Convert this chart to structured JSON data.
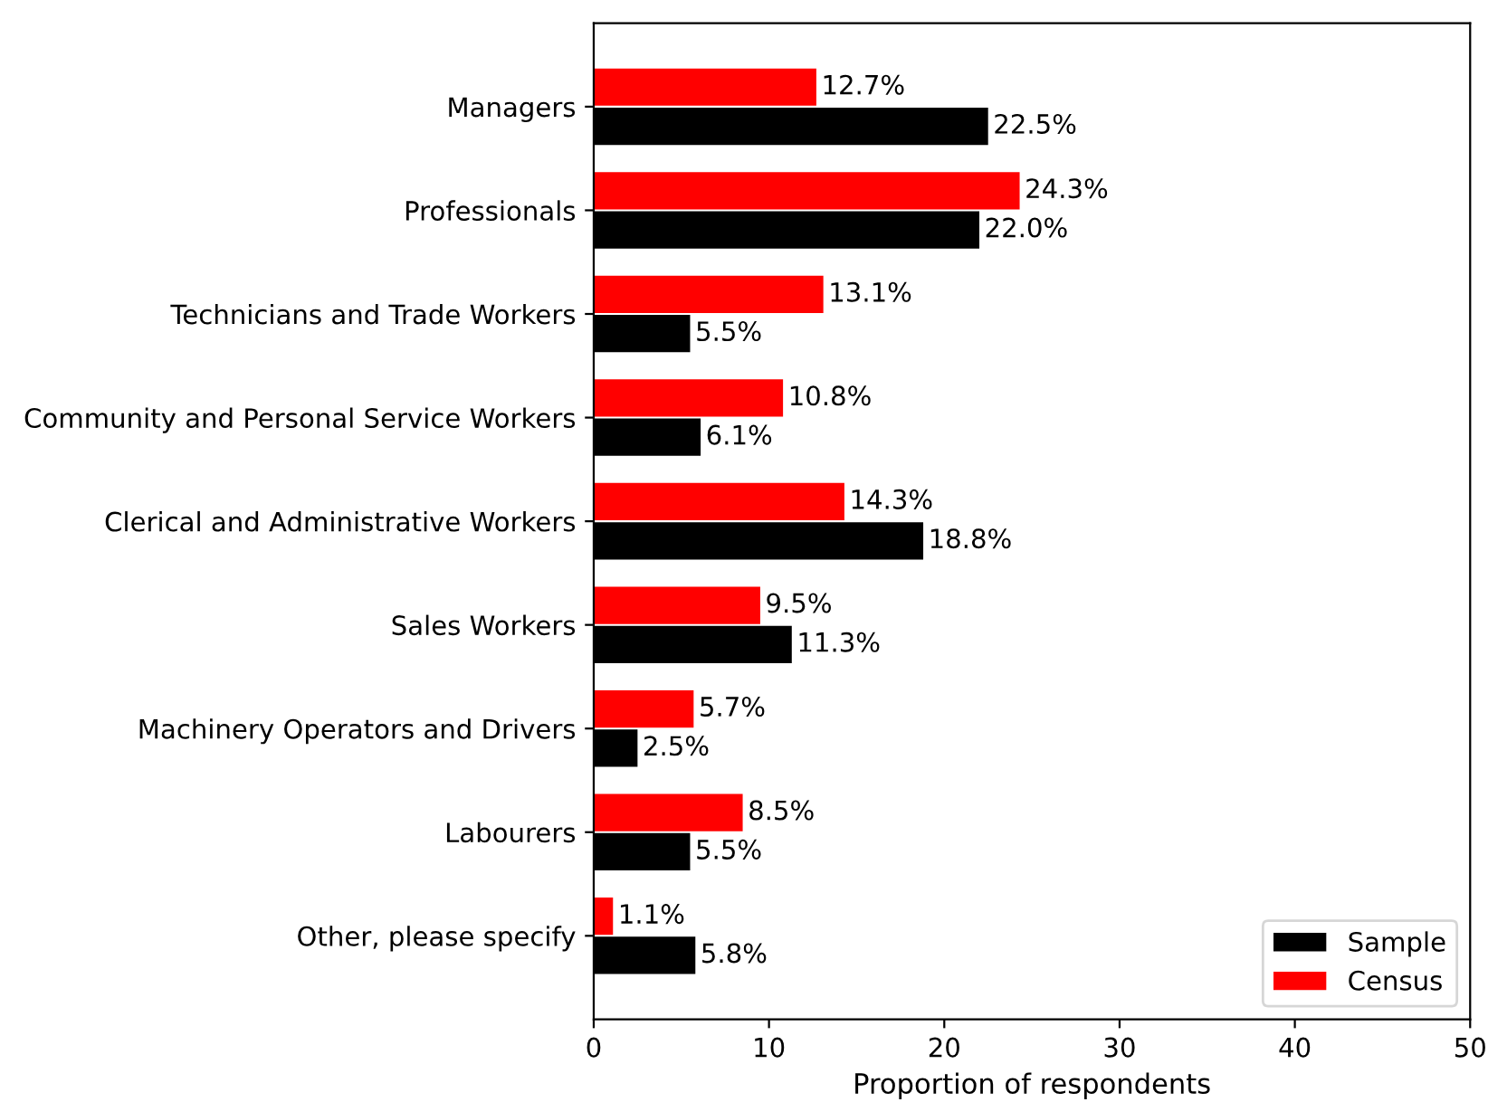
{
  "chart_data": {
    "type": "bar",
    "orientation": "horizontal",
    "xlabel": "Proportion of respondents",
    "categories": [
      "Managers",
      "Professionals",
      "Technicians and Trade Workers",
      "Community and Personal Service Workers",
      "Clerical and Administrative Workers",
      "Sales Workers",
      "Machinery Operators and Drivers",
      "Labourers",
      "Other, please specify"
    ],
    "series": [
      {
        "name": "Sample",
        "color": "#000000",
        "values": [
          22.5,
          22.0,
          5.5,
          6.1,
          18.8,
          11.3,
          2.5,
          5.5,
          5.8
        ],
        "value_labels": [
          "22.5%",
          "22.0%",
          "5.5%",
          "6.1%",
          "18.8%",
          "11.3%",
          "2.5%",
          "5.5%",
          "5.8%"
        ]
      },
      {
        "name": "Census",
        "color": "#ff0000",
        "values": [
          12.7,
          24.3,
          13.1,
          10.8,
          14.3,
          9.5,
          5.7,
          8.5,
          1.1
        ],
        "value_labels": [
          "12.7%",
          "24.3%",
          "13.1%",
          "10.8%",
          "14.3%",
          "9.5%",
          "5.7%",
          "8.5%",
          "1.1%"
        ]
      }
    ],
    "xlim": [
      0,
      50
    ],
    "xticks": [
      0,
      10,
      20,
      30,
      40,
      50
    ],
    "legend": "lower right",
    "grid": false
  }
}
